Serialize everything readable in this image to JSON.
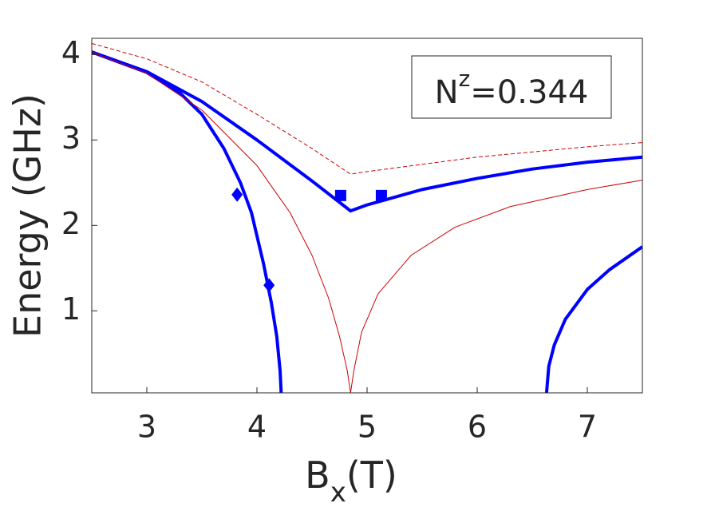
{
  "chart_data": {
    "type": "line",
    "xlabel": [
      "B",
      "x",
      "(T)"
    ],
    "ylabel": "Energy (GHz)",
    "annotation": [
      "N",
      "z",
      "=0.344"
    ],
    "xlim": [
      2.5,
      7.5
    ],
    "xticks": [
      3,
      4,
      5,
      6,
      7
    ],
    "ylim": [
      0.04,
      4.19
    ],
    "yticks": [
      1,
      2,
      3,
      4
    ],
    "grid": false,
    "series": [
      {
        "color": "#0000ff",
        "linewidth": 4,
        "dash": false,
        "x": [
          2.5,
          3.0,
          3.3,
          3.5,
          3.7,
          3.85,
          3.95,
          4.06,
          4.13,
          4.18,
          4.21,
          4.22
        ],
        "values": [
          4.03,
          3.79,
          3.55,
          3.3,
          2.9,
          2.5,
          2.15,
          1.55,
          1.1,
          0.7,
          0.3,
          0.04
        ]
      },
      {
        "color": "#0000ff",
        "linewidth": 4,
        "dash": false,
        "x": [
          2.5,
          3.0,
          3.5,
          4.0,
          4.5,
          4.85,
          5.0,
          5.5,
          6.0,
          6.5,
          7.0,
          7.5
        ],
        "values": [
          4.03,
          3.8,
          3.45,
          3.0,
          2.52,
          2.17,
          2.24,
          2.42,
          2.55,
          2.66,
          2.74,
          2.8
        ]
      },
      {
        "color": "#0000ff",
        "linewidth": 4,
        "dash": false,
        "x": [
          6.63,
          6.65,
          6.7,
          6.8,
          7.0,
          7.2,
          7.5
        ],
        "values": [
          0.04,
          0.35,
          0.6,
          0.9,
          1.25,
          1.48,
          1.75
        ]
      },
      {
        "color": "#cc0000",
        "linewidth": 1,
        "dash": false,
        "x": [
          2.5,
          3.0,
          3.5,
          4.0,
          4.3,
          4.5,
          4.65,
          4.75,
          4.82,
          4.85,
          4.88,
          4.95,
          5.1,
          5.4,
          5.8,
          6.3,
          7.0,
          7.5
        ],
        "values": [
          4.03,
          3.78,
          3.35,
          2.7,
          2.15,
          1.65,
          1.15,
          0.7,
          0.3,
          0.04,
          0.3,
          0.75,
          1.2,
          1.65,
          1.98,
          2.22,
          2.42,
          2.53
        ]
      },
      {
        "color": "#cc0000",
        "linewidth": 1,
        "dash": true,
        "x": [
          2.5,
          3.0,
          3.5,
          4.0,
          4.5,
          4.85,
          5.0,
          6.0,
          7.0,
          7.5
        ],
        "values": [
          4.13,
          3.95,
          3.68,
          3.3,
          2.9,
          2.6,
          2.63,
          2.8,
          2.92,
          2.97
        ]
      },
      {
        "color": "#0000ff",
        "marker": "square",
        "x": [
          4.76,
          5.13
        ],
        "values": [
          2.35,
          2.35
        ]
      },
      {
        "color": "#0000ff",
        "marker": "diamond",
        "x": [
          3.82,
          4.11
        ],
        "values": [
          2.36,
          1.3
        ]
      }
    ]
  }
}
